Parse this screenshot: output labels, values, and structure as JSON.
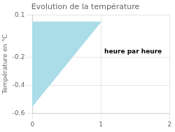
{
  "chart_data": {
    "type": "area",
    "title": "Evolution de la température",
    "ylabel": "Température en °C",
    "x": [
      0,
      0,
      1
    ],
    "values": [
      0.05,
      -0.55,
      0.05
    ],
    "color": "#aadde8",
    "xlim": [
      0,
      2
    ],
    "ylim": [
      -0.6,
      0.1
    ],
    "xticks": [
      0,
      1,
      2
    ],
    "yticks": [
      0.1,
      -0.2,
      -0.4,
      -0.6
    ],
    "grid": true,
    "annotations": [
      {
        "text": "heure par heure",
        "x": 1.05,
        "y": -0.175
      }
    ]
  }
}
